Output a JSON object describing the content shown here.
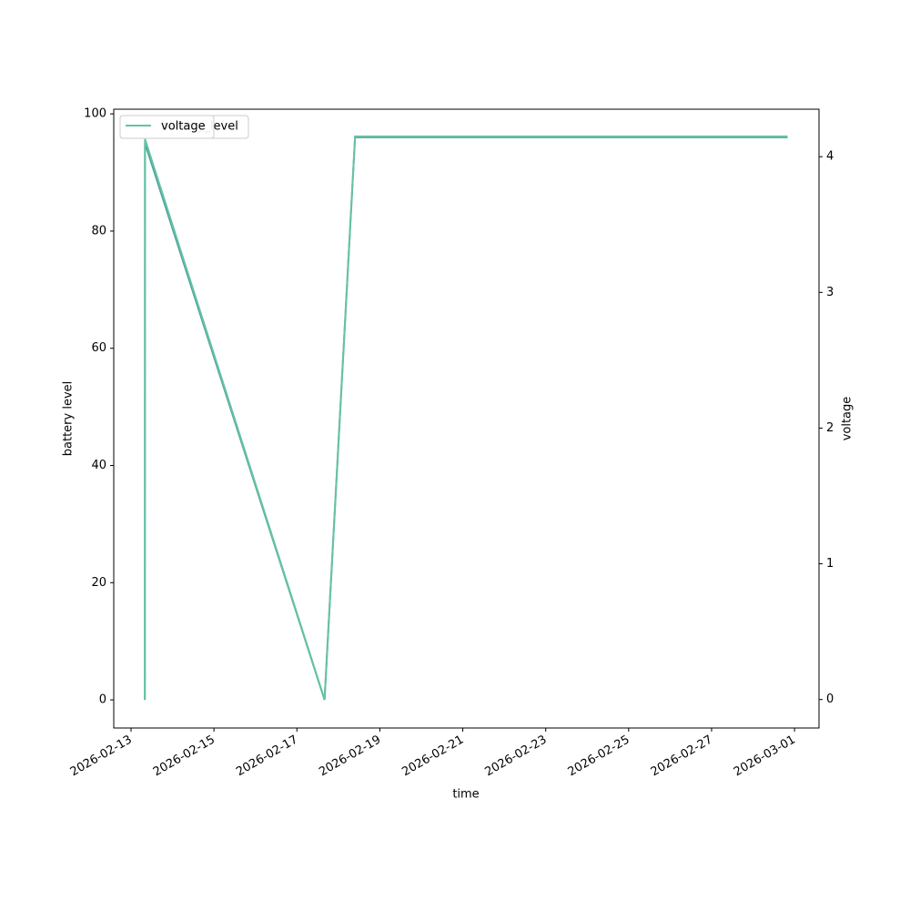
{
  "chart_data": {
    "type": "line",
    "x_label": "time",
    "y_label": "battery level",
    "y2_label": "voltage",
    "x": [
      "2026-02-13T08:00",
      "2026-02-13T08:05",
      "2026-02-17T16:00",
      "2026-02-18T09:40",
      "2026-02-28T20:00"
    ],
    "series": [
      {
        "name": "battery_level",
        "color": "#4e9fa3",
        "values": [
          0,
          95,
          0,
          96,
          96
        ]
      },
      {
        "name": "voltage",
        "color": "#66c2a5",
        "axis": "y2",
        "values": [
          0,
          4.13,
          0,
          4.15,
          4.15
        ]
      }
    ],
    "xlim": [
      "2026-02-12T14:00",
      "2026-03-01T14:10"
    ],
    "xticks": [
      "2026-02-13",
      "2026-02-15",
      "2026-02-17",
      "2026-02-19",
      "2026-02-21",
      "2026-02-23",
      "2026-02-25",
      "2026-02-27",
      "2026-03-01"
    ],
    "ylim": [
      -4.8,
      100.8
    ],
    "yticks": [
      0,
      20,
      40,
      60,
      80,
      100
    ],
    "y2lim": [
      -0.21,
      4.35
    ],
    "y2ticks": [
      0,
      1,
      2,
      3,
      4
    ],
    "grid": false,
    "legend": "upper left"
  }
}
